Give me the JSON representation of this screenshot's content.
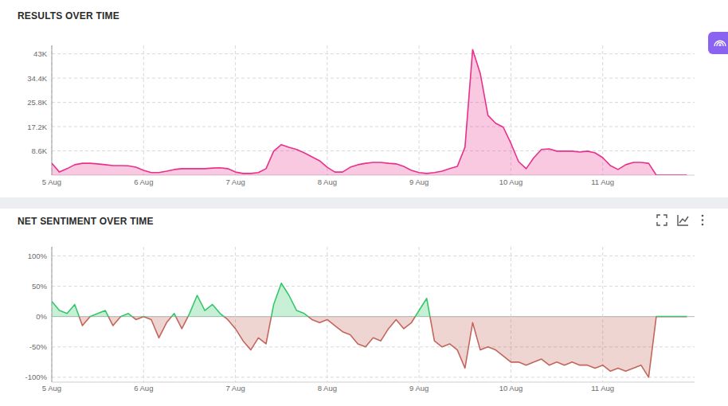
{
  "chart_data": [
    {
      "type": "area",
      "title": "RESULTS OVER TIME",
      "categories": [
        "5 Aug",
        null,
        null,
        null,
        null,
        null,
        null,
        null,
        null,
        null,
        null,
        null,
        "6 Aug",
        null,
        null,
        null,
        null,
        null,
        null,
        null,
        null,
        null,
        null,
        null,
        "7 Aug",
        null,
        null,
        null,
        null,
        null,
        null,
        null,
        null,
        null,
        null,
        null,
        "8 Aug",
        null,
        null,
        null,
        null,
        null,
        null,
        null,
        null,
        null,
        null,
        null,
        "9 Aug",
        null,
        null,
        null,
        null,
        null,
        null,
        null,
        null,
        null,
        null,
        null,
        "10 Aug",
        null,
        null,
        null,
        null,
        null,
        null,
        null,
        null,
        null,
        null,
        null,
        "11 Aug",
        null,
        null,
        null,
        null,
        null,
        null,
        null,
        null,
        null,
        null,
        null
      ],
      "values": [
        4200,
        1100,
        2300,
        3700,
        4200,
        4200,
        4000,
        3700,
        3400,
        3400,
        3300,
        2800,
        1700,
        900,
        900,
        1400,
        2000,
        2300,
        2300,
        2300,
        2300,
        2500,
        2600,
        2300,
        1100,
        600,
        600,
        900,
        2300,
        8500,
        10800,
        9900,
        9100,
        7900,
        6500,
        5100,
        2800,
        1100,
        1100,
        2800,
        3700,
        4200,
        4500,
        4500,
        4200,
        4000,
        3100,
        1700,
        900,
        600,
        900,
        1400,
        2300,
        3100,
        9900,
        44500,
        36000,
        21200,
        18400,
        17000,
        11300,
        4800,
        2300,
        6200,
        9100,
        9300,
        8500,
        8500,
        8500,
        8200,
        8500,
        7900,
        6200,
        3400,
        2000,
        3700,
        4500,
        4500,
        4200,
        0,
        0,
        0,
        0,
        0
      ],
      "color": "#e8308c",
      "ylim": [
        0,
        46000
      ],
      "yticks": [
        {
          "value": 8600,
          "label": "8.6K"
        },
        {
          "value": 17200,
          "label": "17.2K"
        },
        {
          "value": 25800,
          "label": "25.8K"
        },
        {
          "value": 34400,
          "label": "34.4K"
        },
        {
          "value": 43000,
          "label": "43K"
        }
      ],
      "grid": true
    },
    {
      "type": "area",
      "title": "NET SENTIMENT OVER TIME",
      "categories": [
        "5 Aug",
        null,
        null,
        null,
        null,
        null,
        null,
        null,
        null,
        null,
        null,
        null,
        "6 Aug",
        null,
        null,
        null,
        null,
        null,
        null,
        null,
        null,
        null,
        null,
        null,
        "7 Aug",
        null,
        null,
        null,
        null,
        null,
        null,
        null,
        null,
        null,
        null,
        null,
        "8 Aug",
        null,
        null,
        null,
        null,
        null,
        null,
        null,
        null,
        null,
        null,
        null,
        "9 Aug",
        null,
        null,
        null,
        null,
        null,
        null,
        null,
        null,
        null,
        null,
        null,
        "10 Aug",
        null,
        null,
        null,
        null,
        null,
        null,
        null,
        null,
        null,
        null,
        null,
        "11 Aug",
        null,
        null,
        null,
        null,
        null,
        null,
        null,
        null,
        null,
        null,
        null
      ],
      "values": [
        25,
        10,
        5,
        20,
        -15,
        0,
        5,
        10,
        -15,
        0,
        5,
        -5,
        0,
        -5,
        -35,
        -10,
        5,
        -20,
        5,
        35,
        10,
        20,
        5,
        -5,
        -20,
        -40,
        -55,
        -35,
        -45,
        20,
        55,
        35,
        10,
        5,
        -5,
        -10,
        -5,
        -15,
        -25,
        -30,
        -45,
        -50,
        -35,
        -40,
        -20,
        -5,
        -20,
        -10,
        10,
        30,
        -40,
        -50,
        -45,
        -55,
        -85,
        -10,
        -55,
        -50,
        -55,
        -65,
        -75,
        -75,
        -80,
        -75,
        -70,
        -80,
        -75,
        -80,
        -75,
        -80,
        -80,
        -85,
        -80,
        -90,
        -85,
        -90,
        -85,
        -80,
        -100,
        0,
        0,
        0,
        0,
        0
      ],
      "color": "#c2665c",
      "ylim": [
        -108,
        115
      ],
      "yticks": [
        {
          "value": -100,
          "label": "-100%"
        },
        {
          "value": -50,
          "label": "-50%"
        },
        {
          "value": 0,
          "label": "0%"
        },
        {
          "value": 50,
          "label": "50%"
        },
        {
          "value": 100,
          "label": "100%"
        }
      ],
      "grid": true
    }
  ]
}
